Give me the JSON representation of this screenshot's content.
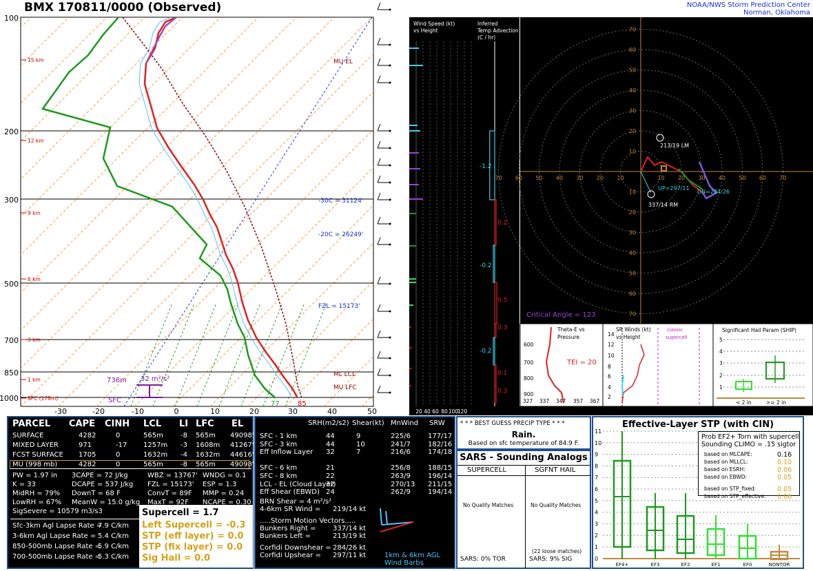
{
  "header": {
    "title": "BMX   170811/0000  (Observed)",
    "credit_line1": "NOAA/NWS Storm Prediction Center",
    "credit_line2": "Norman, Oklahoma"
  },
  "chart_data": [
    {
      "type": "line",
      "title": "Skew-T",
      "pressure_ticks": [
        "100",
        "200",
        "300",
        "500",
        "700",
        "850",
        "1000"
      ],
      "temp_ticks": [
        "-30",
        "-20",
        "-10",
        "0",
        "10",
        "20",
        "30",
        "40",
        "50"
      ],
      "height_labels": [
        "15 km",
        "12 km",
        "9 km",
        "6 km",
        "3 km",
        "1 km",
        "SFC (178m)"
      ],
      "annotations": [
        "MU EL",
        "-30C = 31124'",
        "-20C = 26249'",
        "FZL = 15173'",
        "ML LCL",
        "MU LFC",
        "736m",
        "32 m²/s²",
        "SFC",
        "77",
        "85"
      ],
      "series": [
        {
          "name": "Temperature",
          "color": "#e02020"
        },
        {
          "name": "Dewpoint",
          "color": "#1a9a1a"
        }
      ]
    },
    {
      "type": "line",
      "title": "Wind Speed (kt) vs Height",
      "x_ticks": [
        "20",
        "40",
        "60",
        "80",
        "100",
        "120"
      ]
    },
    {
      "type": "bar",
      "title": "Inferred Temp Advection (C / hr)",
      "values": [
        -1.2,
        0.2,
        -0.2,
        0.5,
        0.3,
        -0.2,
        0.1,
        0.3
      ]
    },
    {
      "type": "scatter",
      "title": "Hodograph",
      "ring_labels": [
        "10",
        "20",
        "30",
        "40",
        "50",
        "60",
        "70"
      ],
      "annotations": [
        "213/19 LM",
        "337/14 RM",
        "UP=297/11",
        "DN=284/26",
        "Critical Angle = 123"
      ]
    },
    {
      "type": "line",
      "title": "Theta-E vs Pressure",
      "x_ticks": [
        "327",
        "337",
        "347",
        "357",
        "367"
      ],
      "y_ticks": [
        "600",
        "700",
        "800",
        "900"
      ],
      "annotations": [
        "TEI = 20"
      ]
    },
    {
      "type": "line",
      "title": "SR Winds (kt) vs Height",
      "y_ticks": [
        "14",
        "12",
        "10",
        "8",
        "6",
        "4",
        "2"
      ],
      "annotations": [
        "classic supercell"
      ]
    },
    {
      "type": "bar",
      "title": "Significant Hail Param (SHIP)",
      "y_ticks": [
        "5",
        "4",
        "3",
        "2",
        "1"
      ],
      "categories": [
        "< 2 in",
        ">= 2 in"
      ]
    }
  ],
  "parcel_table": {
    "headers": [
      "PARCEL",
      "CAPE",
      "CINH",
      "LCL",
      "LI",
      "LFC",
      "EL"
    ],
    "rows": [
      [
        "SURFACE",
        "4282",
        "0",
        "565m",
        "-8",
        "565m",
        "49098'"
      ],
      [
        "MIXED LAYER",
        "971",
        "-17",
        "1257m",
        "-3",
        "1608m",
        "41267'"
      ],
      [
        "FCST SURFACE",
        "1705",
        "0",
        "1632m",
        "-4",
        "1632m",
        "44616'"
      ],
      [
        "MU   (998 mb)",
        "4282",
        "0",
        "565m",
        "-8",
        "565m",
        "49098'"
      ]
    ]
  },
  "thermo_indices": [
    [
      "PW = 1.97 in",
      "3CAPE = 72 J/kg",
      "WBZ = 13767'",
      "WNDG = 0.1"
    ],
    [
      "K = 33",
      "DCAPE = 537 J/kg",
      "FZL = 15173'",
      "ESP = 1.3"
    ],
    [
      "MidRH = 79%",
      "DownT = 68 F",
      "ConvT = 89F",
      "MMP = 0.24"
    ],
    [
      "LowRH = 67%",
      "MeanW = 15.0 g/kg",
      "MaxT = 92F",
      "NCAPE = 0.30"
    ],
    [
      "SigSevere = 10579 m3/s3",
      "",
      "",
      ""
    ]
  ],
  "lapse_rates": [
    [
      "Sfc-3km Agl Lapse Rate =",
      "7.9 C/km"
    ],
    [
      "3-6km Agl Lapse Rate =",
      "5.4 C/km"
    ],
    [
      "850-500mb Lapse Rate =",
      "5.9 C/km"
    ],
    [
      "700-500mb Lapse Rate =",
      "5.3 C/km"
    ]
  ],
  "composite": {
    "supercell": "Supercell = 1.7",
    "left_supercell": "Left Supercell = -0.3",
    "stp_eff": "STP (eff layer) = 0.0",
    "stp_fix": "STP (fix layer) = 0.0",
    "sig_hail": "Sig Hail = 0.0"
  },
  "kinematics": {
    "headers": [
      "SRH(m2/s2)",
      "Shear(kt)",
      "MnWind",
      "SRW"
    ],
    "rows": [
      [
        "SFC - 1 km",
        "44",
        "9",
        "225/6",
        "177/17"
      ],
      [
        "SFC - 3 km",
        "44",
        "10",
        "241/7",
        "182/16"
      ],
      [
        "Eff Inflow Layer",
        "32",
        "7",
        "216/6",
        "174/18"
      ],
      [
        "",
        "",
        "",
        "",
        ""
      ],
      [
        "SFC - 6 km",
        "21",
        "256/8",
        "188/15",
        ""
      ],
      [
        "SFC - 8 km",
        "22",
        "263/9",
        "196/14",
        ""
      ],
      [
        "LCL - EL (Cloud Layer)",
        "32",
        "270/13",
        "211/15",
        ""
      ],
      [
        "Eff Shear (EBWD)",
        "24",
        "262/9",
        "194/14",
        ""
      ]
    ],
    "brn_shear": "BRN Shear = 4 m²/s²",
    "sr_wind": "4-6km SR Wind =",
    "sr_wind_val": "219/14 kt",
    "storm_motion_title": ".....Storm Motion Vectors.....",
    "bunkers_right": "Bunkers Right =",
    "bunkers_right_val": "337/14 kt",
    "bunkers_left": "Bunkers Left =",
    "bunkers_left_val": "213/19 kt",
    "corfidi_down": "Corfidi Downshear =",
    "corfidi_down_val": "284/26 kt",
    "corfidi_up": "Corfidi Upshear =",
    "corfidi_up_val": "297/11 kt",
    "barb_caption1": "1km & 6km AGL",
    "barb_caption2": "Wind Barbs"
  },
  "precip": {
    "title": "* * * BEST GUESS PRECIP TYPE * * *",
    "type": "Rain.",
    "basis": "Based on sfc temperature of 84.9 F."
  },
  "sars": {
    "title": "SARS - Sounding Analogs",
    "col1": "SUPERCELL",
    "col2": "SGFNT HAIL",
    "col1_match": "No Quality Matches",
    "col2_match": "No Quality Matches",
    "col2_note": "(22 loose matches)",
    "col1_footer": "SARS:  0% TOR",
    "col2_footer": "SARS:  9% SIG"
  },
  "stp": {
    "title": "Effective-Layer STP (with CIN)",
    "prob_line1": "Prob EF2+ Torn with supercell",
    "prob_line2": "Sounding CLIMO = .15 sigtor",
    "stats": [
      [
        "based on MLCAPE:",
        "0.16"
      ],
      [
        "based on MLLCL:",
        "0.10"
      ],
      [
        "based on ESRH:",
        "0.06"
      ],
      [
        "based on EBWD:",
        "0.05"
      ],
      [
        "based on STP_fixed:",
        "0.05"
      ],
      [
        "based on STP_effective:",
        "0.06"
      ]
    ],
    "y_ticks": [
      "11",
      "10",
      "9",
      "8",
      "7",
      "6",
      "5",
      "4",
      "3",
      "2",
      "1",
      "0"
    ],
    "categories": [
      "EF4+",
      "EF3",
      "EF2",
      "EF1",
      "EF0",
      "NONTOR"
    ]
  }
}
